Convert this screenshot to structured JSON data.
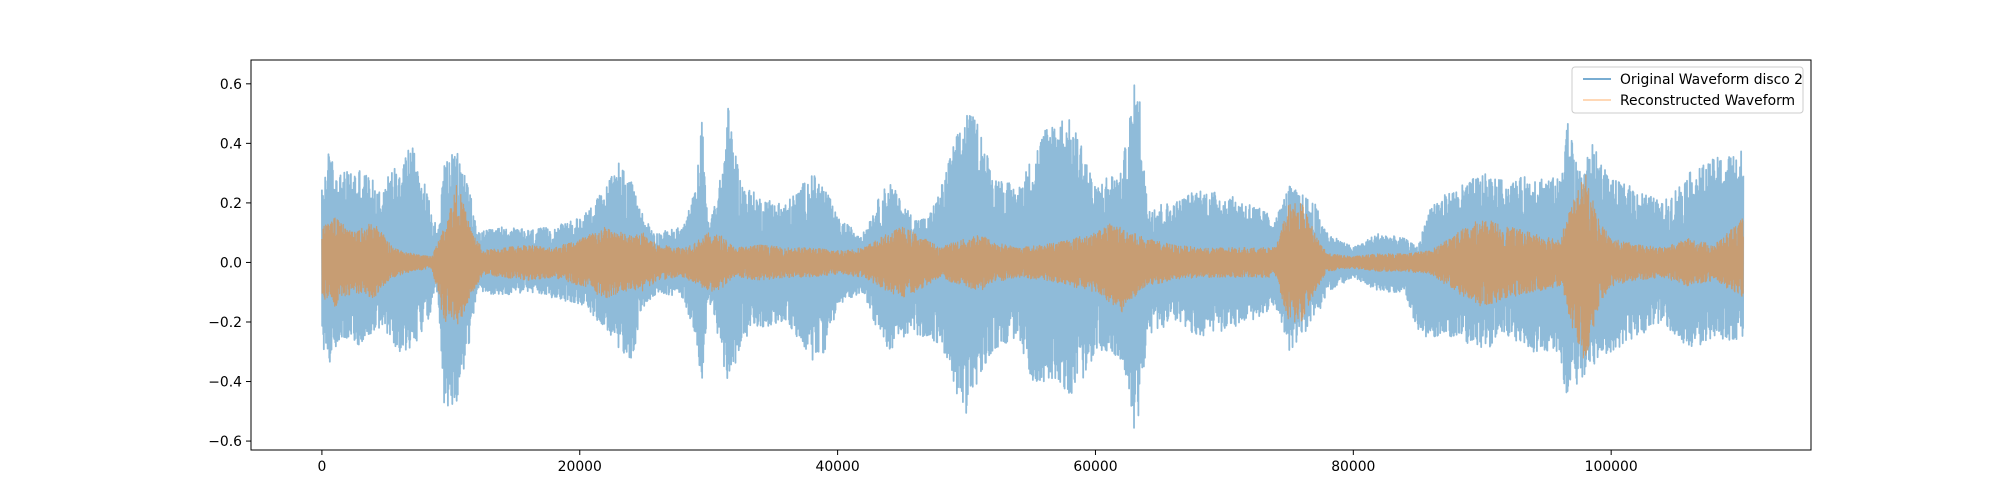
{
  "chart_data": {
    "type": "line",
    "title": "",
    "xlabel": "",
    "ylabel": "",
    "xlim": [
      -5500,
      115500
    ],
    "ylim": [
      -0.63,
      0.68
    ],
    "x_ticks": [
      0,
      20000,
      40000,
      60000,
      80000,
      100000
    ],
    "x_tick_labels": [
      "0",
      "20000",
      "40000",
      "60000",
      "80000",
      "100000"
    ],
    "y_ticks": [
      0.6,
      0.4,
      0.2,
      0.0,
      -0.2,
      -0.4,
      -0.6
    ],
    "y_tick_labels": [
      "0.6",
      "0.4",
      "0.2",
      "0.0",
      "−0.2",
      "−0.4",
      "−0.6"
    ],
    "grid": false,
    "legend_position": "top-right",
    "x_range": [
      0,
      110250
    ],
    "series": [
      {
        "name": "Original Waveform disco 2",
        "color": "#1f77b4",
        "alpha": 0.5,
        "envelope": {
          "x": [
            0,
            500,
            1500,
            3000,
            4500,
            6000,
            7000,
            8000,
            9000,
            9500,
            10500,
            11500,
            12000,
            14000,
            16000,
            18000,
            20000,
            21000,
            22000,
            23000,
            24000,
            25000,
            26000,
            28000,
            29000,
            29500,
            30000,
            31000,
            31500,
            32500,
            34000,
            36000,
            38000,
            39000,
            40000,
            41000,
            42000,
            43000,
            44000,
            45000,
            46000,
            47000,
            48000,
            49000,
            50000,
            51000,
            52000,
            54000,
            55000,
            56000,
            57000,
            58000,
            59000,
            60000,
            61000,
            62000,
            63000,
            63500,
            64000,
            66000,
            68000,
            70000,
            72000,
            74000,
            75000,
            76000,
            77000,
            78000,
            80000,
            82000,
            84000,
            85000,
            86000,
            88000,
            90000,
            92000,
            94000,
            96000,
            96500,
            97500,
            98500,
            100000,
            102000,
            104000,
            106000,
            108000,
            110250
          ],
          "upper": [
            0.25,
            0.37,
            0.3,
            0.32,
            0.25,
            0.35,
            0.41,
            0.26,
            0.1,
            0.35,
            0.37,
            0.26,
            0.1,
            0.12,
            0.11,
            0.12,
            0.15,
            0.2,
            0.25,
            0.35,
            0.27,
            0.15,
            0.1,
            0.12,
            0.25,
            0.49,
            0.12,
            0.3,
            0.53,
            0.27,
            0.22,
            0.2,
            0.3,
            0.26,
            0.15,
            0.12,
            0.1,
            0.2,
            0.28,
            0.2,
            0.15,
            0.15,
            0.25,
            0.4,
            0.51,
            0.47,
            0.3,
            0.25,
            0.35,
            0.45,
            0.5,
            0.48,
            0.4,
            0.25,
            0.3,
            0.3,
            0.6,
            0.55,
            0.2,
            0.2,
            0.25,
            0.23,
            0.2,
            0.15,
            0.26,
            0.23,
            0.2,
            0.1,
            0.05,
            0.1,
            0.08,
            0.05,
            0.2,
            0.25,
            0.3,
            0.27,
            0.3,
            0.28,
            0.52,
            0.3,
            0.4,
            0.28,
            0.25,
            0.2,
            0.3,
            0.35,
            0.38
          ],
          "lower": [
            -0.27,
            -0.35,
            -0.25,
            -0.28,
            -0.22,
            -0.3,
            -0.29,
            -0.22,
            -0.1,
            -0.53,
            -0.47,
            -0.26,
            -0.1,
            -0.11,
            -0.1,
            -0.12,
            -0.14,
            -0.18,
            -0.22,
            -0.3,
            -0.33,
            -0.15,
            -0.1,
            -0.12,
            -0.25,
            -0.42,
            -0.12,
            -0.3,
            -0.43,
            -0.27,
            -0.22,
            -0.2,
            -0.33,
            -0.3,
            -0.15,
            -0.12,
            -0.1,
            -0.22,
            -0.3,
            -0.25,
            -0.25,
            -0.25,
            -0.28,
            -0.42,
            -0.51,
            -0.4,
            -0.3,
            -0.25,
            -0.4,
            -0.4,
            -0.39,
            -0.45,
            -0.4,
            -0.3,
            -0.3,
            -0.35,
            -0.56,
            -0.5,
            -0.25,
            -0.2,
            -0.25,
            -0.23,
            -0.2,
            -0.15,
            -0.3,
            -0.25,
            -0.2,
            -0.1,
            -0.05,
            -0.1,
            -0.1,
            -0.25,
            -0.25,
            -0.25,
            -0.3,
            -0.25,
            -0.3,
            -0.3,
            -0.45,
            -0.4,
            -0.35,
            -0.3,
            -0.25,
            -0.2,
            -0.3,
            -0.25,
            -0.28
          ]
        }
      },
      {
        "name": "Reconstructed Waveform",
        "color": "#ff7f0e",
        "alpha": 0.5,
        "envelope": {
          "x": [
            0,
            1000,
            2500,
            4000,
            5500,
            7000,
            8500,
            9500,
            10500,
            11500,
            12500,
            14000,
            16000,
            18000,
            20000,
            22000,
            24000,
            25000,
            26000,
            28000,
            29000,
            30000,
            31000,
            32000,
            34000,
            36000,
            38000,
            40000,
            42000,
            44000,
            45000,
            46000,
            48000,
            49000,
            50000,
            51000,
            52000,
            54000,
            56000,
            58000,
            60000,
            61000,
            62000,
            63000,
            64000,
            66000,
            68000,
            70000,
            72000,
            74000,
            75000,
            76000,
            77000,
            78000,
            80000,
            82000,
            84000,
            86000,
            88000,
            90000,
            92000,
            94000,
            96000,
            97000,
            98000,
            99000,
            100000,
            102000,
            104000,
            106000,
            108000,
            110250
          ],
          "upper": [
            0.12,
            0.15,
            0.1,
            0.14,
            0.05,
            0.03,
            0.02,
            0.12,
            0.27,
            0.12,
            0.04,
            0.05,
            0.06,
            0.05,
            0.08,
            0.12,
            0.09,
            0.1,
            0.06,
            0.05,
            0.07,
            0.1,
            0.09,
            0.05,
            0.06,
            0.05,
            0.05,
            0.04,
            0.05,
            0.1,
            0.12,
            0.1,
            0.05,
            0.07,
            0.08,
            0.1,
            0.07,
            0.05,
            0.06,
            0.08,
            0.1,
            0.13,
            0.12,
            0.1,
            0.08,
            0.06,
            0.05,
            0.05,
            0.05,
            0.05,
            0.2,
            0.2,
            0.1,
            0.03,
            0.02,
            0.03,
            0.03,
            0.04,
            0.1,
            0.15,
            0.12,
            0.1,
            0.08,
            0.2,
            0.3,
            0.15,
            0.08,
            0.06,
            0.05,
            0.08,
            0.06,
            0.15
          ],
          "lower": [
            -0.12,
            -0.15,
            -0.1,
            -0.12,
            -0.05,
            -0.03,
            -0.02,
            -0.2,
            -0.22,
            -0.12,
            -0.04,
            -0.05,
            -0.06,
            -0.05,
            -0.08,
            -0.12,
            -0.09,
            -0.1,
            -0.06,
            -0.05,
            -0.07,
            -0.1,
            -0.09,
            -0.05,
            -0.06,
            -0.05,
            -0.05,
            -0.04,
            -0.05,
            -0.1,
            -0.12,
            -0.1,
            -0.05,
            -0.07,
            -0.08,
            -0.1,
            -0.07,
            -0.05,
            -0.06,
            -0.08,
            -0.1,
            -0.13,
            -0.17,
            -0.12,
            -0.08,
            -0.06,
            -0.05,
            -0.05,
            -0.05,
            -0.05,
            -0.2,
            -0.2,
            -0.1,
            -0.03,
            -0.02,
            -0.03,
            -0.03,
            -0.04,
            -0.1,
            -0.15,
            -0.12,
            -0.1,
            -0.08,
            -0.22,
            -0.35,
            -0.15,
            -0.08,
            -0.06,
            -0.05,
            -0.08,
            -0.06,
            -0.12
          ]
        }
      }
    ]
  }
}
